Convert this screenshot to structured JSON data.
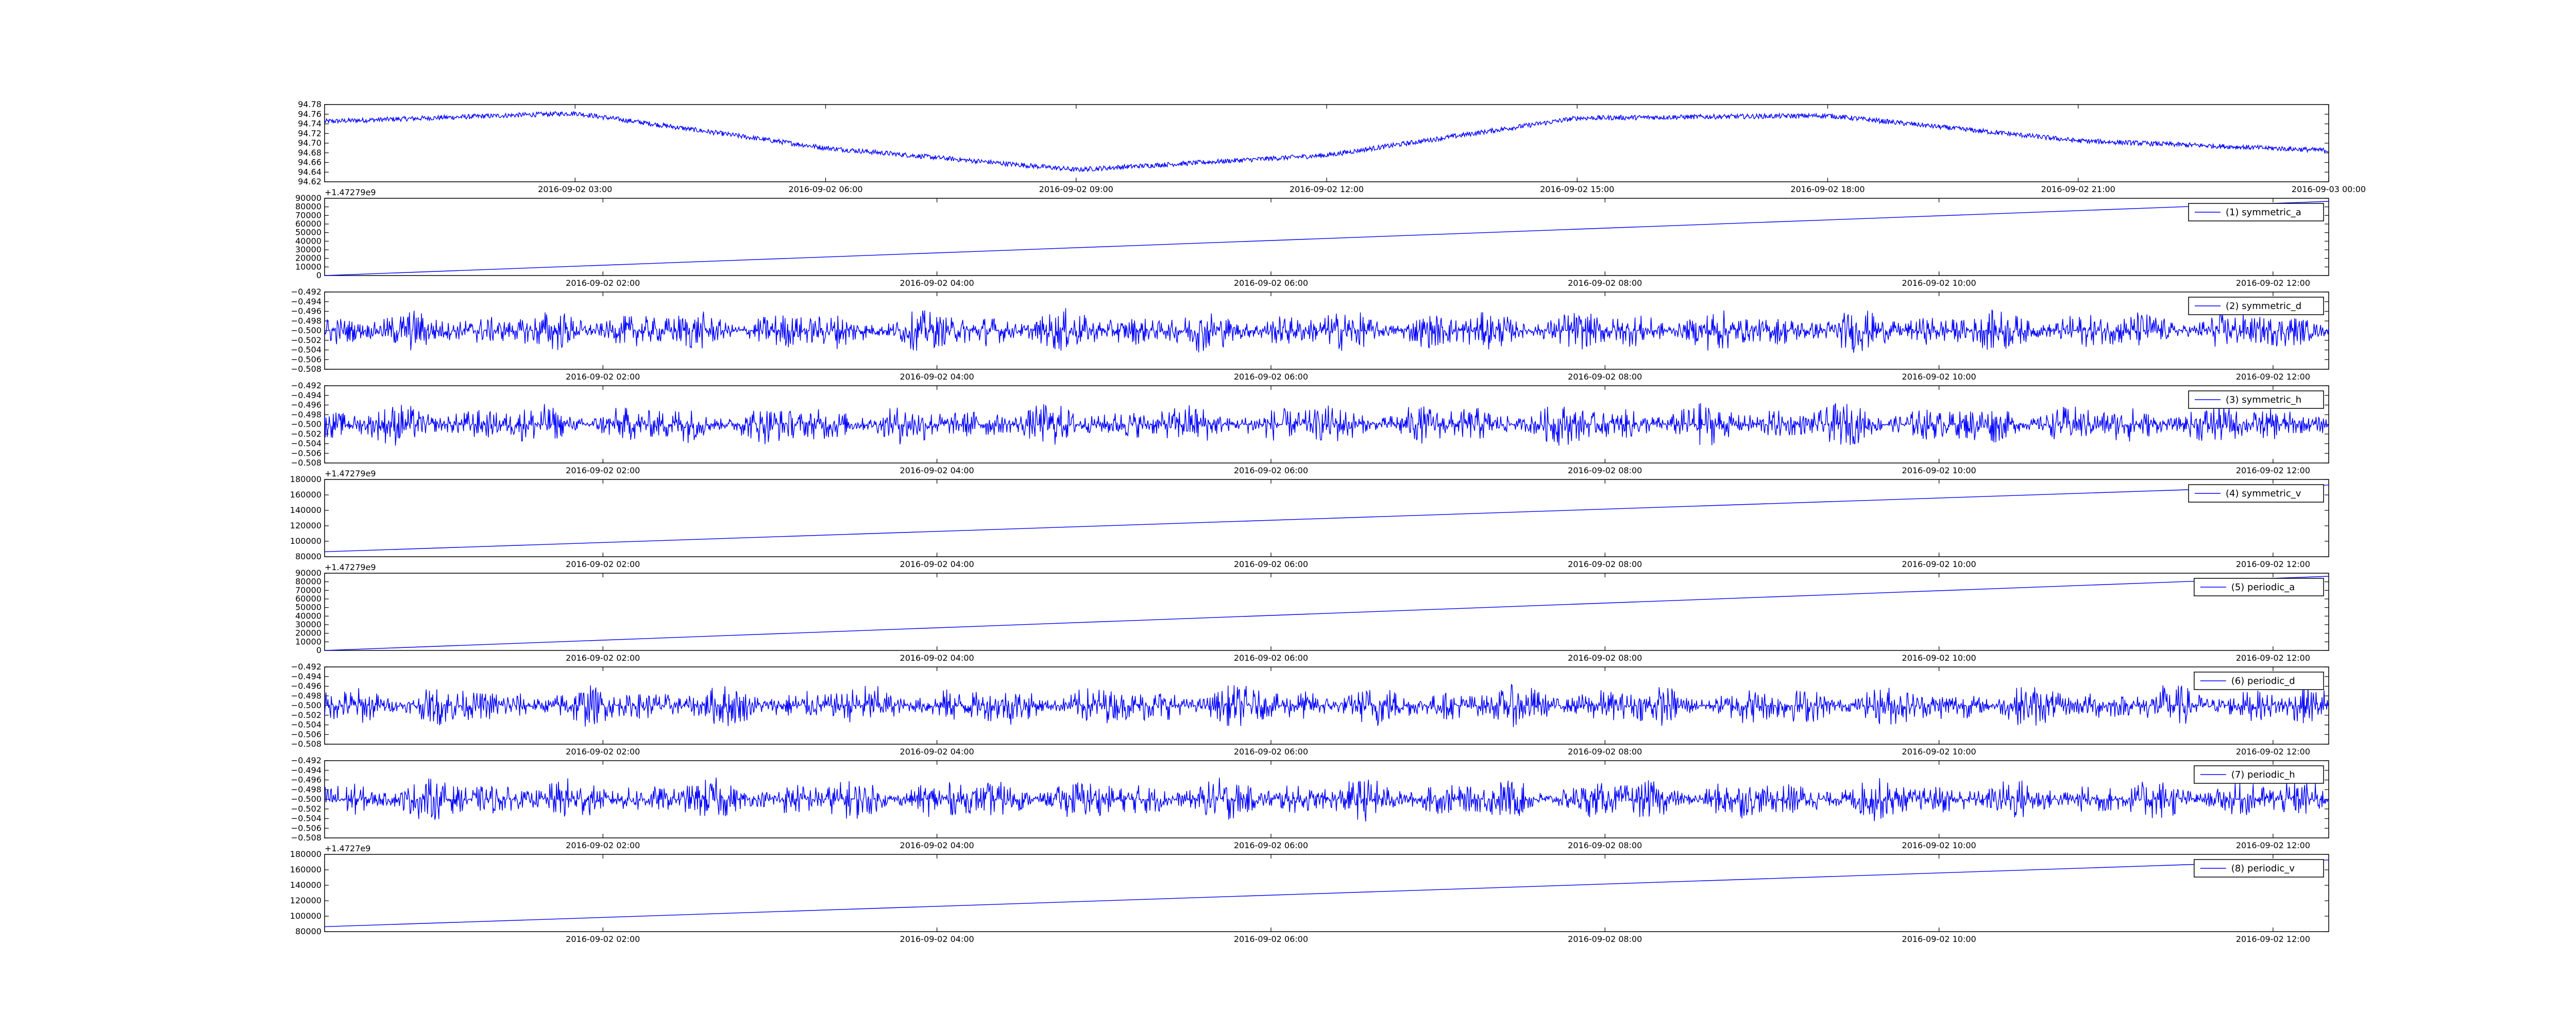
{
  "chart_data": [
    {
      "type": "line",
      "title": "",
      "legend": null,
      "offset_label": "+1.47279e9",
      "x_ticks": [
        "2016-09-02 03:00",
        "2016-09-02 06:00",
        "2016-09-02 09:00",
        "2016-09-02 12:00",
        "2016-09-02 15:00",
        "2016-09-02 18:00",
        "2016-09-02 21:00",
        "2016-09-03 00:00"
      ],
      "y_ticks": [
        "94.62",
        "94.64",
        "94.66",
        "94.68",
        "94.70",
        "94.72",
        "94.74",
        "94.76",
        "94.78"
      ],
      "ylim": [
        94.62,
        94.78
      ],
      "x": [
        "00:00",
        "03:00",
        "06:00",
        "09:00",
        "12:00",
        "15:00",
        "18:00",
        "21:00",
        "24:00"
      ],
      "y": [
        94.745,
        94.762,
        94.69,
        94.645,
        94.675,
        94.752,
        94.757,
        94.705,
        94.685
      ],
      "noise": 0.005
    },
    {
      "type": "line",
      "legend": "(1) symmetric_a",
      "offset_label": "",
      "x_ticks": [
        "2016-09-02 02:00",
        "2016-09-02 04:00",
        "2016-09-02 06:00",
        "2016-09-02 08:00",
        "2016-09-02 10:00",
        "2016-09-02 12:00"
      ],
      "y_ticks": [
        "0",
        "10000",
        "20000",
        "30000",
        "40000",
        "50000",
        "60000",
        "70000",
        "80000",
        "90000"
      ],
      "ylim": [
        0,
        90000
      ],
      "x": [
        "00:20",
        "12:20"
      ],
      "y": [
        0,
        86400
      ],
      "noise": 0
    },
    {
      "type": "line",
      "legend": "(2) symmetric_d",
      "offset_label": "",
      "x_ticks": [
        "2016-09-02 02:00",
        "2016-09-02 04:00",
        "2016-09-02 06:00",
        "2016-09-02 08:00",
        "2016-09-02 10:00",
        "2016-09-02 12:00"
      ],
      "y_ticks": [
        "−0.508",
        "−0.506",
        "−0.504",
        "−0.502",
        "−0.500",
        "−0.498",
        "−0.496",
        "−0.494",
        "−0.492"
      ],
      "ylim": [
        -0.508,
        -0.492
      ],
      "x": [
        "00:20",
        "12:20"
      ],
      "y": [
        -0.5,
        -0.5
      ],
      "noise": 0.0035
    },
    {
      "type": "line",
      "legend": "(3) symmetric_h",
      "offset_label": "+1.47279e9",
      "x_ticks": [
        "2016-09-02 02:00",
        "2016-09-02 04:00",
        "2016-09-02 06:00",
        "2016-09-02 08:00",
        "2016-09-02 10:00",
        "2016-09-02 12:00"
      ],
      "y_ticks": [
        "−0.508",
        "−0.506",
        "−0.504",
        "−0.502",
        "−0.500",
        "−0.498",
        "−0.496",
        "−0.494",
        "−0.492"
      ],
      "ylim": [
        -0.508,
        -0.492
      ],
      "x": [
        "00:20",
        "12:20"
      ],
      "y": [
        -0.5,
        -0.5
      ],
      "noise": 0.0035
    },
    {
      "type": "line",
      "legend": "(4) symmetric_v",
      "offset_label": "+1.47279e9",
      "x_ticks": [
        "2016-09-02 02:00",
        "2016-09-02 04:00",
        "2016-09-02 06:00",
        "2016-09-02 08:00",
        "2016-09-02 10:00",
        "2016-09-02 12:00"
      ],
      "y_ticks": [
        "80000",
        "100000",
        "120000",
        "140000",
        "160000",
        "180000"
      ],
      "ylim": [
        80000,
        180000
      ],
      "x": [
        "00:20",
        "12:20"
      ],
      "y": [
        86400,
        172800
      ],
      "noise": 0
    },
    {
      "type": "line",
      "legend": "(5) periodic_a",
      "offset_label": "",
      "x_ticks": [
        "2016-09-02 02:00",
        "2016-09-02 04:00",
        "2016-09-02 06:00",
        "2016-09-02 08:00",
        "2016-09-02 10:00",
        "2016-09-02 12:00"
      ],
      "y_ticks": [
        "0",
        "10000",
        "20000",
        "30000",
        "40000",
        "50000",
        "60000",
        "70000",
        "80000",
        "90000"
      ],
      "ylim": [
        0,
        90000
      ],
      "x": [
        "00:20",
        "12:20"
      ],
      "y": [
        0,
        86400
      ],
      "noise": 0
    },
    {
      "type": "line",
      "legend": "(6) periodic_d",
      "offset_label": "",
      "x_ticks": [
        "2016-09-02 02:00",
        "2016-09-02 04:00",
        "2016-09-02 06:00",
        "2016-09-02 08:00",
        "2016-09-02 10:00",
        "2016-09-02 12:00"
      ],
      "y_ticks": [
        "−0.508",
        "−0.506",
        "−0.504",
        "−0.502",
        "−0.500",
        "−0.498",
        "−0.496",
        "−0.494",
        "−0.492"
      ],
      "ylim": [
        -0.508,
        -0.492
      ],
      "x": [
        "00:20",
        "12:20"
      ],
      "y": [
        -0.5,
        -0.5
      ],
      "noise": 0.0035
    },
    {
      "type": "line",
      "legend": "(7) periodic_h",
      "offset_label": "+1.4727e9",
      "x_ticks": [
        "2016-09-02 02:00",
        "2016-09-02 04:00",
        "2016-09-02 06:00",
        "2016-09-02 08:00",
        "2016-09-02 10:00",
        "2016-09-02 12:00"
      ],
      "y_ticks": [
        "−0.508",
        "−0.506",
        "−0.504",
        "−0.502",
        "−0.500",
        "−0.498",
        "−0.496",
        "−0.494",
        "−0.492"
      ],
      "ylim": [
        -0.508,
        -0.492
      ],
      "x": [
        "00:20",
        "12:20"
      ],
      "y": [
        -0.5,
        -0.5
      ],
      "noise": 0.0035
    },
    {
      "type": "line",
      "legend": "(8) periodic_v",
      "offset_label": "",
      "x_ticks": [
        "2016-09-02 02:00",
        "2016-09-02 04:00",
        "2016-09-02 06:00",
        "2016-09-02 08:00",
        "2016-09-02 10:00",
        "2016-09-02 12:00"
      ],
      "y_ticks": [
        "80000",
        "100000",
        "120000",
        "140000",
        "160000",
        "180000"
      ],
      "ylim": [
        80000,
        180000
      ],
      "x": [
        "00:20",
        "12:20"
      ],
      "y": [
        86400,
        172800
      ],
      "noise": 0
    }
  ],
  "colors": {
    "line": "#0000ff",
    "axes": "#000000",
    "background": "#ffffff"
  }
}
